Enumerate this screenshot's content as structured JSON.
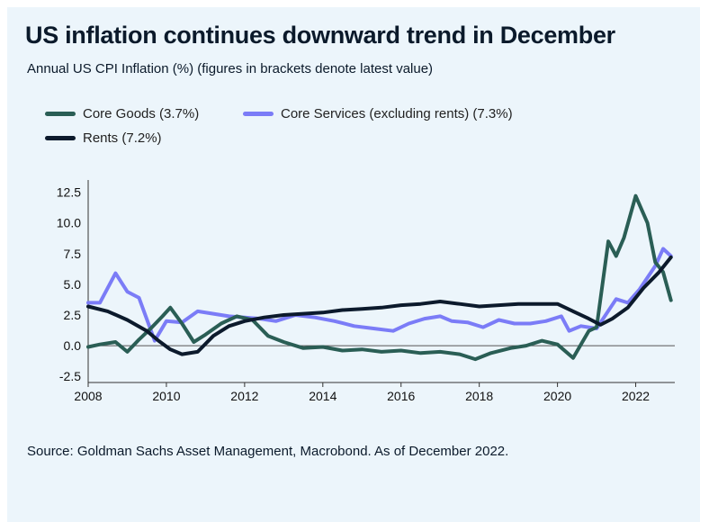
{
  "chart_data": {
    "type": "line",
    "title": "US inflation continues downward trend in December",
    "subtitle": "Annual US CPI Inflation (%)  (figures in brackets denote latest value)",
    "source": "Source: Goldman Sachs Asset Management, Macrobond. As of December 2022.",
    "xlim": [
      2008,
      2023
    ],
    "ylim": [
      -3,
      13.5
    ],
    "x_ticks": [
      2008,
      2010,
      2012,
      2014,
      2016,
      2018,
      2020,
      2022
    ],
    "x_tick_labels": [
      "2008",
      "2010",
      "2012",
      "2014",
      "2016",
      "2018",
      "2020",
      "2022"
    ],
    "y_ticks": [
      12.5,
      10.0,
      7.5,
      5.0,
      2.5,
      0.0,
      -2.5
    ],
    "y_tick_labels": [
      "12.5",
      "10.0",
      "7.5",
      "5.0",
      "2.5",
      "0.0",
      "-2.5"
    ],
    "grid": false,
    "legend_position": "top-left",
    "series": [
      {
        "name": "Core Goods (3.7%)",
        "color": "#2a5e55",
        "points": [
          [
            2008.0,
            -0.1
          ],
          [
            2008.3,
            0.1
          ],
          [
            2008.7,
            0.3
          ],
          [
            2009.0,
            -0.5
          ],
          [
            2009.3,
            0.5
          ],
          [
            2009.6,
            1.4
          ],
          [
            2009.9,
            2.4
          ],
          [
            2010.1,
            3.1
          ],
          [
            2010.4,
            1.8
          ],
          [
            2010.7,
            0.3
          ],
          [
            2011.0,
            0.9
          ],
          [
            2011.4,
            1.8
          ],
          [
            2011.8,
            2.4
          ],
          [
            2012.2,
            2.1
          ],
          [
            2012.6,
            0.8
          ],
          [
            2013.0,
            0.3
          ],
          [
            2013.5,
            -0.2
          ],
          [
            2014.0,
            -0.1
          ],
          [
            2014.5,
            -0.4
          ],
          [
            2015.0,
            -0.3
          ],
          [
            2015.5,
            -0.5
          ],
          [
            2016.0,
            -0.4
          ],
          [
            2016.5,
            -0.6
          ],
          [
            2017.0,
            -0.5
          ],
          [
            2017.5,
            -0.7
          ],
          [
            2017.9,
            -1.1
          ],
          [
            2018.3,
            -0.6
          ],
          [
            2018.8,
            -0.2
          ],
          [
            2019.2,
            0.0
          ],
          [
            2019.6,
            0.4
          ],
          [
            2020.0,
            0.1
          ],
          [
            2020.4,
            -1.0
          ],
          [
            2020.8,
            1.2
          ],
          [
            2021.0,
            1.5
          ],
          [
            2021.3,
            8.5
          ],
          [
            2021.5,
            7.3
          ],
          [
            2021.7,
            8.8
          ],
          [
            2022.0,
            12.2
          ],
          [
            2022.3,
            10.0
          ],
          [
            2022.5,
            6.8
          ],
          [
            2022.7,
            6.0
          ],
          [
            2022.9,
            3.7
          ]
        ]
      },
      {
        "name": "Core Services (excluding rents) (7.3%)",
        "color": "#7b7cf7",
        "points": [
          [
            2008.0,
            3.5
          ],
          [
            2008.3,
            3.5
          ],
          [
            2008.7,
            5.9
          ],
          [
            2009.0,
            4.4
          ],
          [
            2009.3,
            3.9
          ],
          [
            2009.7,
            0.4
          ],
          [
            2010.0,
            2.0
          ],
          [
            2010.4,
            1.9
          ],
          [
            2010.8,
            2.8
          ],
          [
            2011.2,
            2.6
          ],
          [
            2011.6,
            2.4
          ],
          [
            2012.0,
            2.3
          ],
          [
            2012.4,
            2.2
          ],
          [
            2012.8,
            2.0
          ],
          [
            2013.3,
            2.5
          ],
          [
            2013.8,
            2.3
          ],
          [
            2014.3,
            2.0
          ],
          [
            2014.8,
            1.6
          ],
          [
            2015.3,
            1.4
          ],
          [
            2015.8,
            1.2
          ],
          [
            2016.2,
            1.8
          ],
          [
            2016.6,
            2.2
          ],
          [
            2017.0,
            2.4
          ],
          [
            2017.3,
            2.0
          ],
          [
            2017.7,
            1.9
          ],
          [
            2018.1,
            1.5
          ],
          [
            2018.5,
            2.1
          ],
          [
            2018.9,
            1.8
          ],
          [
            2019.3,
            1.8
          ],
          [
            2019.7,
            2.0
          ],
          [
            2020.1,
            2.4
          ],
          [
            2020.3,
            1.2
          ],
          [
            2020.6,
            1.6
          ],
          [
            2021.0,
            1.4
          ],
          [
            2021.5,
            3.8
          ],
          [
            2021.8,
            3.5
          ],
          [
            2022.1,
            4.6
          ],
          [
            2022.5,
            6.5
          ],
          [
            2022.7,
            7.9
          ],
          [
            2022.9,
            7.3
          ]
        ]
      },
      {
        "name": "Rents (7.2%)",
        "color": "#0c1a2c",
        "points": [
          [
            2008.0,
            3.2
          ],
          [
            2008.5,
            2.8
          ],
          [
            2009.0,
            2.1
          ],
          [
            2009.5,
            1.2
          ],
          [
            2009.8,
            0.4
          ],
          [
            2010.1,
            -0.3
          ],
          [
            2010.4,
            -0.7
          ],
          [
            2010.8,
            -0.5
          ],
          [
            2011.2,
            0.8
          ],
          [
            2011.6,
            1.6
          ],
          [
            2012.0,
            2.0
          ],
          [
            2012.5,
            2.3
          ],
          [
            2013.0,
            2.5
          ],
          [
            2013.5,
            2.6
          ],
          [
            2014.0,
            2.7
          ],
          [
            2014.5,
            2.9
          ],
          [
            2015.0,
            3.0
          ],
          [
            2015.5,
            3.1
          ],
          [
            2016.0,
            3.3
          ],
          [
            2016.5,
            3.4
          ],
          [
            2017.0,
            3.6
          ],
          [
            2017.5,
            3.4
          ],
          [
            2018.0,
            3.2
          ],
          [
            2018.5,
            3.3
          ],
          [
            2019.0,
            3.4
          ],
          [
            2019.5,
            3.4
          ],
          [
            2020.0,
            3.4
          ],
          [
            2020.4,
            2.8
          ],
          [
            2020.8,
            2.2
          ],
          [
            2021.1,
            1.7
          ],
          [
            2021.4,
            2.2
          ],
          [
            2021.8,
            3.1
          ],
          [
            2022.2,
            4.7
          ],
          [
            2022.6,
            6.0
          ],
          [
            2022.9,
            7.2
          ]
        ]
      }
    ]
  }
}
